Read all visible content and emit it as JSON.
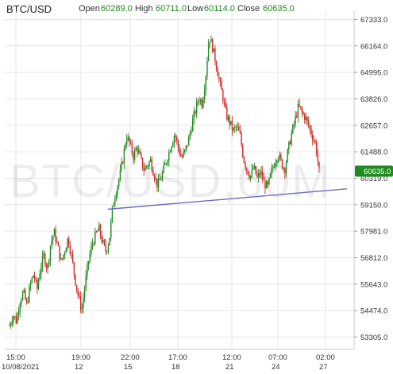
{
  "header": {
    "symbol": "BTC/USD",
    "open_label": "Open",
    "open": "60289.0",
    "high_label": "High",
    "high": "60711.0",
    "low_label": "Low",
    "low": "60114.0",
    "close_label": "Close",
    "close": "60635.0"
  },
  "watermark": "BTC/USD,60M",
  "colors": {
    "up": "#1f8a1f",
    "down": "#d42a2a",
    "trendline": "#6b6bbf",
    "price_tag": "#1f8a1f",
    "grid": "#e6e6e6"
  },
  "chart_data": {
    "type": "candlestick",
    "title": "BTC/USD",
    "y_ticks": [
      "67333.0",
      "66164.0",
      "64995.0",
      "63826.0",
      "62657.0",
      "61488.0",
      "60319.0",
      "59150.0",
      "57981.0",
      "56812.0",
      "55643.0",
      "54474.0",
      "53305.0"
    ],
    "ylim": [
      52900,
      67700
    ],
    "x_ticks": [
      {
        "top": "15:00",
        "bottom": "10/08/2021"
      },
      {
        "top": "19:00",
        "bottom": "12"
      },
      {
        "top": "22:00",
        "bottom": "15"
      },
      {
        "top": "17:00",
        "bottom": "18"
      },
      {
        "top": "12:00",
        "bottom": "21"
      },
      {
        "top": "07:00",
        "bottom": "24"
      },
      {
        "top": "02:00",
        "bottom": "27"
      }
    ],
    "last_price": "60635.0",
    "grid": true,
    "series_close_path": [
      53800,
      54300,
      54000,
      54900,
      55300,
      54700,
      55600,
      56100,
      55400,
      56400,
      56900,
      56300,
      57500,
      57900,
      57300,
      56600,
      57100,
      57700,
      56900,
      55900,
      55100,
      54500,
      55700,
      56700,
      57400,
      57800,
      58100,
      57500,
      57100,
      57600,
      59100,
      59800,
      60400,
      61200,
      62200,
      61800,
      61300,
      61700,
      61200,
      60700,
      60900,
      61100,
      60500,
      60000,
      60300,
      60800,
      61300,
      61800,
      62300,
      61700,
      61200,
      61500,
      62000,
      62700,
      63300,
      63900,
      63600,
      64800,
      66600,
      66100,
      65400,
      64600,
      63900,
      63100,
      62800,
      62400,
      62600,
      62200,
      61200,
      60700,
      60400,
      60800,
      60300,
      60600,
      60100,
      59900,
      60500,
      61000,
      61400,
      61000,
      60700,
      61600,
      62300,
      62900,
      63500,
      63200,
      63000,
      62600,
      62200,
      61800,
      60600
    ],
    "trendline": [
      {
        "x_index": 0.22,
        "y": 58950
      },
      {
        "x_index": 1.0,
        "y": 59850
      }
    ]
  }
}
